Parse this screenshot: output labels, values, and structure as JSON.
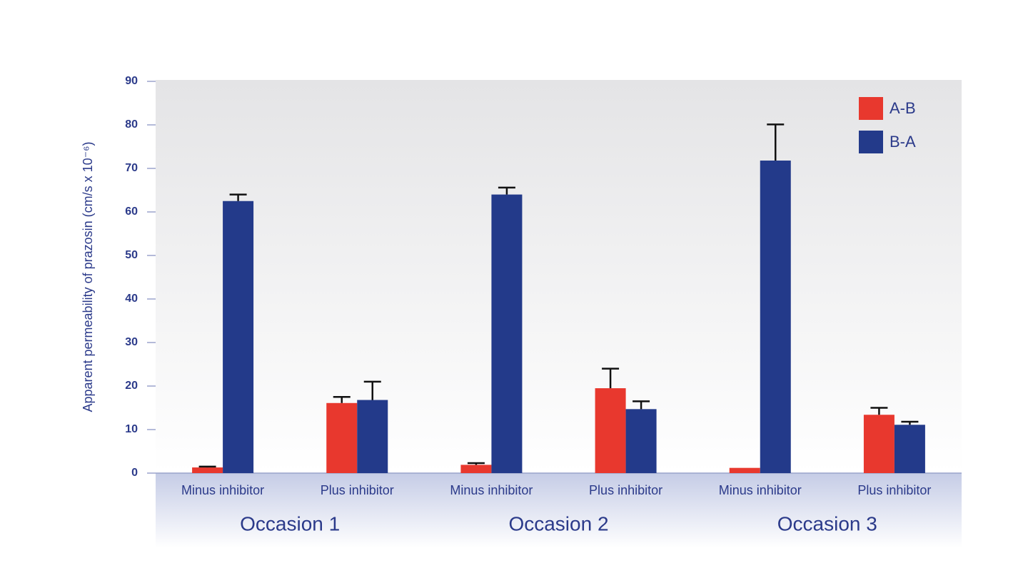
{
  "chart_data": {
    "type": "bar",
    "y_label": "Apparent  permeability of prazosin (cm/s x 10⁻⁶)",
    "groups": [
      {
        "name": "Occasion 1",
        "categories": [
          "Minus inhibitor",
          "Plus inhibitor"
        ]
      },
      {
        "name": "Occasion 2",
        "categories": [
          "Minus inhibitor",
          "Plus inhibitor"
        ]
      },
      {
        "name": "Occasion 3",
        "categories": [
          "Minus inhibitor",
          "Plus inhibitor"
        ]
      }
    ],
    "series": [
      {
        "name": "A-B",
        "color": "#e8382e",
        "values": [
          1.3,
          16.1,
          1.9,
          19.5,
          1.2,
          13.4
        ],
        "errors": [
          0.2,
          1.4,
          0.4,
          4.5,
          null,
          1.6
        ]
      },
      {
        "name": "B-A",
        "color": "#233a8a",
        "values": [
          62.5,
          16.8,
          64,
          14.7,
          71.8,
          11.1
        ],
        "errors": [
          1.5,
          4.2,
          1.6,
          1.8,
          8.3,
          0.7
        ]
      }
    ],
    "ylim": [
      0,
      90
    ],
    "yticks": [
      0,
      10,
      20,
      30,
      40,
      50,
      60,
      70,
      80,
      90
    ],
    "grid": false,
    "legend": "top-right"
  }
}
